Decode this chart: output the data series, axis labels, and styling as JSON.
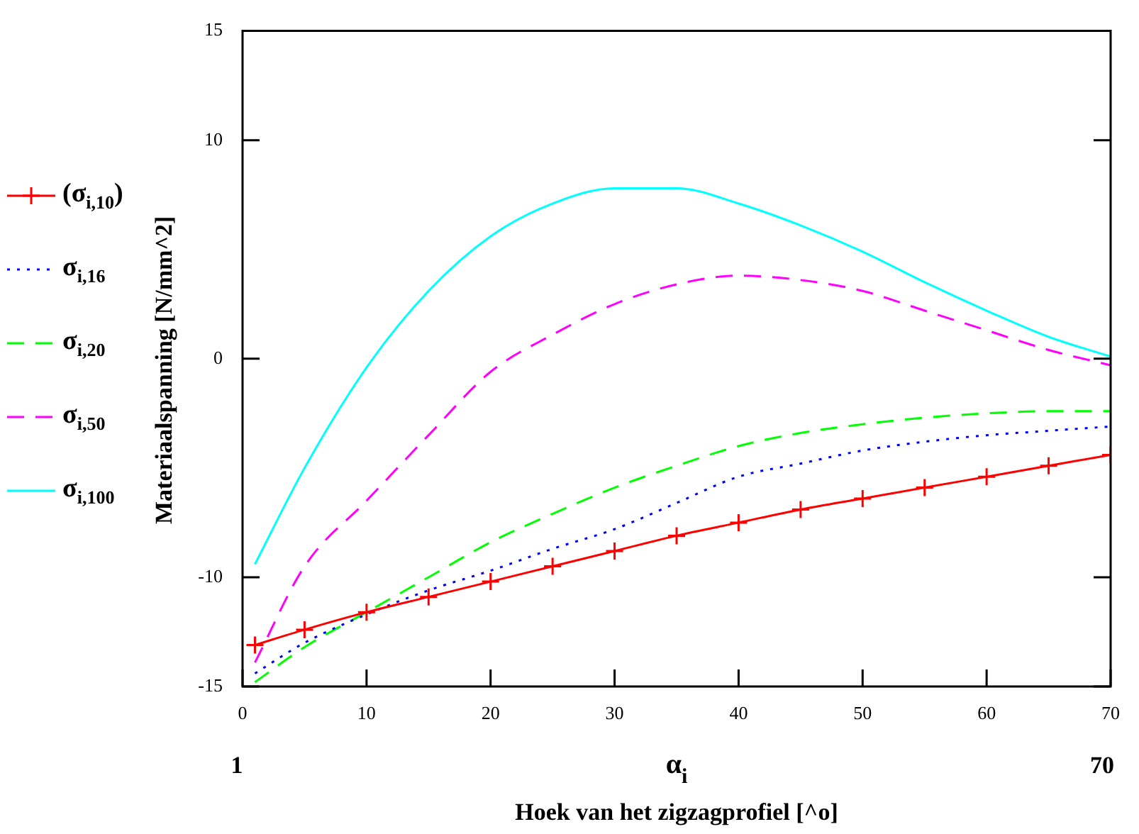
{
  "chart_data": {
    "type": "line",
    "xlabel": "Hoek van het zigzagprofiel [^o]",
    "ylabel": "Materiaalspanning [N/mm^2]",
    "x": [
      1,
      5,
      10,
      15,
      20,
      25,
      30,
      35,
      40,
      45,
      50,
      55,
      60,
      65,
      70
    ],
    "series": [
      {
        "name": "(σ$_{i,10}$)",
        "color": "#ff0000",
        "marker": "cross",
        "line_style": "solid",
        "values": [
          -13.1,
          -12.4,
          -11.6,
          -10.9,
          -10.2,
          -9.5,
          -8.8,
          -8.1,
          -7.5,
          -6.9,
          -6.4,
          -5.9,
          -5.4,
          -4.9,
          -4.4
        ]
      },
      {
        "name": "σ$_{i,16}$",
        "color": "#0000ff",
        "marker": "none",
        "line_style": "dotted",
        "values": [
          -14.4,
          -13.0,
          -11.7,
          -10.6,
          -9.7,
          -8.7,
          -7.8,
          -6.6,
          -5.4,
          -4.8,
          -4.2,
          -3.8,
          -3.5,
          -3.3,
          -3.1
        ]
      },
      {
        "name": "σ$_{i,20}$",
        "color": "#00ff00",
        "marker": "none",
        "line_style": "dashed",
        "values": [
          -14.8,
          -13.2,
          -11.6,
          -10.0,
          -8.4,
          -7.1,
          -5.9,
          -4.9,
          -4.0,
          -3.4,
          -3.0,
          -2.7,
          -2.5,
          -2.4,
          -2.4
        ]
      },
      {
        "name": "σ$_{i,50}$",
        "color": "#ff00ff",
        "marker": "none",
        "line_style": "dashed",
        "values": [
          -13.9,
          -9.5,
          -6.5,
          -3.5,
          -0.6,
          1.1,
          2.5,
          3.4,
          3.8,
          3.6,
          3.1,
          2.2,
          1.3,
          0.4,
          -0.3
        ]
      },
      {
        "name": "σ$_{i,100}$",
        "color": "#00ffff",
        "marker": "none",
        "line_style": "solid",
        "values": [
          -9.4,
          -5.0,
          -0.4,
          3.1,
          5.6,
          7.1,
          7.8,
          7.8,
          7.1,
          6.1,
          4.9,
          3.5,
          2.2,
          1.0,
          0.1
        ]
      }
    ],
    "xlim": [
      0,
      70
    ],
    "xticks": [
      0,
      10,
      20,
      30,
      40,
      50,
      60,
      70
    ],
    "ylim": [
      -15,
      15
    ],
    "yticks": [
      -15,
      -10,
      0,
      10,
      15
    ],
    "grid": false,
    "legend": "left",
    "annotations": [
      "1",
      "α$_{i}$",
      "70"
    ]
  }
}
